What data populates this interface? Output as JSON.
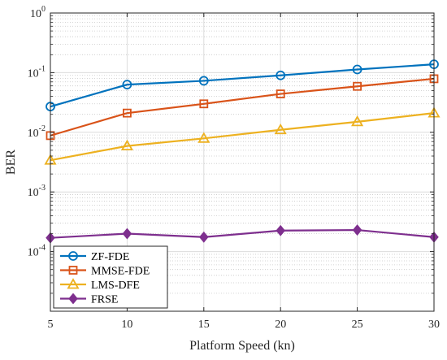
{
  "chart_data": {
    "type": "line",
    "xlabel": "Platform Speed (kn)",
    "ylabel": "BER",
    "x": [
      5,
      10,
      15,
      20,
      25,
      30
    ],
    "xlim": [
      5,
      30
    ],
    "ylim": [
      1e-05,
      1
    ],
    "yscale": "log",
    "grid": true,
    "xticks": [
      "5",
      "10",
      "15",
      "20",
      "25",
      "30"
    ],
    "yticks": [
      {
        "base": "10",
        "exp": "0"
      },
      {
        "base": "10",
        "exp": "-1"
      },
      {
        "base": "10",
        "exp": "-2"
      },
      {
        "base": "10",
        "exp": "-3"
      },
      {
        "base": "10",
        "exp": "-4"
      }
    ],
    "legend_position": "bottom-left",
    "series": [
      {
        "name": "ZF-FDE",
        "color": "#0072BD",
        "marker": "circle",
        "values": [
          0.027,
          0.063,
          0.073,
          0.09,
          0.113,
          0.138
        ]
      },
      {
        "name": "MMSE-FDE",
        "color": "#D95319",
        "marker": "square",
        "values": [
          0.0088,
          0.021,
          0.03,
          0.044,
          0.059,
          0.079
        ]
      },
      {
        "name": "LMS-DFE",
        "color": "#EDB120",
        "marker": "triangle",
        "values": [
          0.0034,
          0.0059,
          0.0079,
          0.011,
          0.015,
          0.021
        ]
      },
      {
        "name": "FRSE",
        "color": "#7E2F8E",
        "marker": "diamond",
        "values": [
          0.00017,
          0.0002,
          0.000175,
          0.000225,
          0.00023,
          0.000175
        ]
      }
    ]
  }
}
